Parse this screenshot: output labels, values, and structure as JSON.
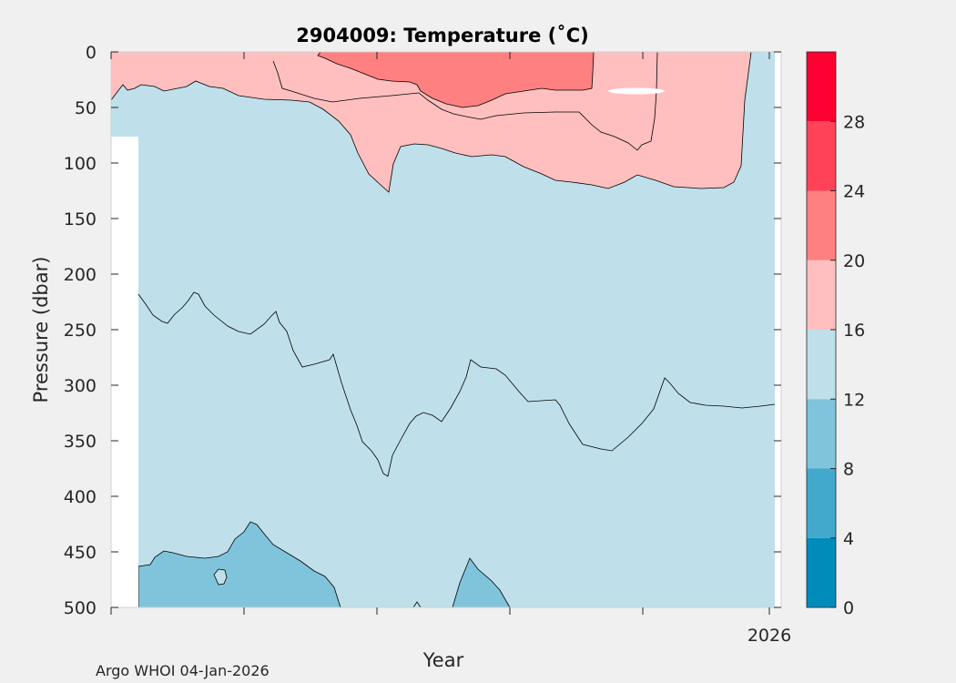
{
  "chart_data": {
    "type": "heatmap",
    "title": "2904009:  Temperature (˚C)",
    "xlabel": "Year",
    "ylabel": "Pressure (dbar)",
    "ylim": [
      0,
      500
    ],
    "y_reversed": true,
    "y_ticks": [
      0,
      50,
      100,
      150,
      200,
      250,
      300,
      350,
      400,
      450,
      500
    ],
    "x_tick_labels": [
      "2026"
    ],
    "colorbar": {
      "levels": [
        0,
        4,
        8,
        12,
        16,
        20,
        24,
        28,
        32
      ],
      "tick_labels": [
        "0",
        "4",
        "8",
        "12",
        "16",
        "20",
        "24",
        "28"
      ],
      "colors": [
        "#008cbb",
        "#42a9cd",
        "#80c4dc",
        "#bfe0eb",
        "#ffbfbf",
        "#ff8080",
        "#ff4257",
        "#ff0033"
      ]
    },
    "contour_levels": [
      12,
      16,
      20
    ],
    "footer": "Argo WHOI 04-Jan-2026"
  }
}
